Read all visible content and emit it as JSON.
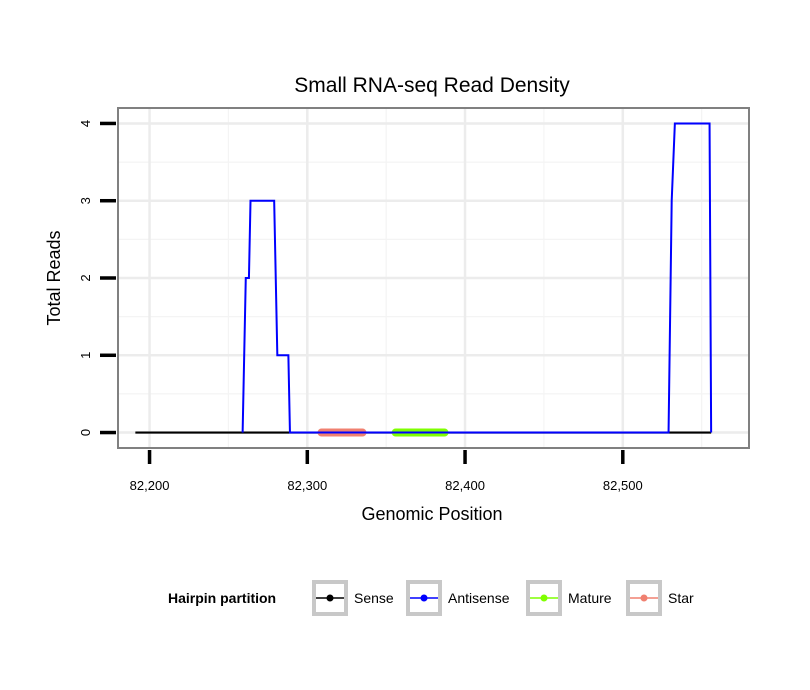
{
  "chart_data": {
    "type": "line",
    "title": "Small RNA-seq Read Density",
    "xlabel": "Genomic Position",
    "ylabel": "Total Reads",
    "xlim": [
      82180,
      82580
    ],
    "ylim": [
      -0.2,
      4.2
    ],
    "grid": true,
    "x_ticks": [
      82200,
      82300,
      82400,
      82500
    ],
    "x_tick_labels": [
      "82,200",
      "82,300",
      "82,400",
      "82,500"
    ],
    "y_ticks": [
      0,
      1,
      2,
      3,
      4
    ],
    "y_tick_labels": [
      "0",
      "1",
      "2",
      "3",
      "4"
    ],
    "legend": {
      "title": "Hairpin partition",
      "position": "bottom",
      "entries": [
        {
          "name": "Sense",
          "color": "#000000"
        },
        {
          "name": "Antisense",
          "color": "#0000ff"
        },
        {
          "name": "Mature",
          "color": "#7fff00"
        },
        {
          "name": "Star",
          "color": "#f08070"
        }
      ]
    },
    "series": [
      {
        "name": "Sense",
        "color": "#000000",
        "x": [
          82191,
          82556
        ],
        "y": [
          0,
          0
        ]
      },
      {
        "name": "Antisense",
        "color": "#0000ff",
        "x": [
          82259,
          82261,
          82263,
          82264,
          82279,
          82281,
          82288,
          82289,
          82290,
          82529,
          82531,
          82533,
          82555,
          82556
        ],
        "y": [
          0,
          2,
          2,
          3,
          3,
          1,
          1,
          0,
          0,
          0,
          3,
          4,
          4,
          0
        ]
      },
      {
        "name": "Mature",
        "color": "#7fff00",
        "x": [
          82356,
          82387
        ],
        "y": [
          0,
          0
        ]
      },
      {
        "name": "Star",
        "color": "#f08070",
        "x": [
          82309,
          82335
        ],
        "y": [
          0,
          0
        ]
      }
    ]
  }
}
